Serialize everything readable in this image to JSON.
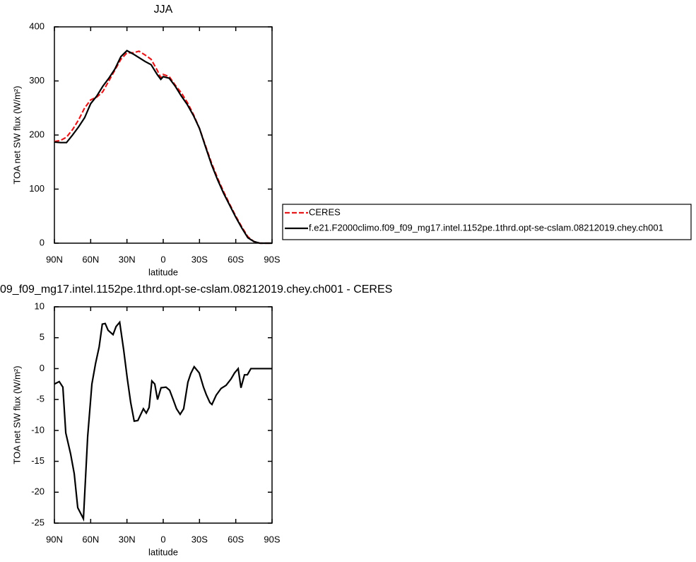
{
  "chart_data": [
    {
      "type": "line",
      "title": "JJA",
      "xlabel": "latitude",
      "ylabel": "TOA net SW flux (W/m²)",
      "x": [
        90,
        85,
        80,
        75,
        70,
        65,
        60,
        55,
        50,
        45,
        40,
        35,
        30,
        25,
        20,
        15,
        10,
        5,
        2,
        0,
        -5,
        -10,
        -15,
        -20,
        -25,
        -30,
        -35,
        -40,
        -45,
        -50,
        -55,
        -60,
        -65,
        -70,
        -75,
        -80,
        -85,
        -90
      ],
      "series": [
        {
          "name": "CERES",
          "color": "#e41a1c",
          "dash": true,
          "values": [
            188,
            190,
            196,
            210,
            228,
            250,
            265,
            270,
            280,
            300,
            320,
            340,
            352,
            352,
            355,
            348,
            340,
            320,
            306,
            312,
            308,
            292,
            278,
            260,
            238,
            212,
            180,
            148,
            120,
            95,
            72,
            50,
            30,
            12,
            3,
            0,
            0,
            0
          ]
        },
        {
          "name": "f.e21.F2000climo.f09_f09_mg17.intel.1152pe.1thrd.opt-se-cslam.08212019.chey.ch001",
          "color": "#000000",
          "dash": false,
          "values": [
            187,
            186,
            186,
            200,
            215,
            232,
            258,
            272,
            290,
            305,
            322,
            345,
            356,
            350,
            343,
            336,
            330,
            312,
            303,
            308,
            305,
            290,
            272,
            256,
            236,
            212,
            178,
            145,
            117,
            92,
            70,
            48,
            28,
            10,
            3,
            0,
            0,
            0
          ]
        }
      ],
      "xlim": [
        90,
        -90
      ],
      "xticks": [
        {
          "value": 90,
          "label": "90N"
        },
        {
          "value": 60,
          "label": "60N"
        },
        {
          "value": 30,
          "label": "30N"
        },
        0,
        {
          "value": -30,
          "label": "30S"
        },
        {
          "value": -60,
          "label": "60S"
        },
        {
          "value": -90,
          "label": "90S"
        }
      ],
      "ylim": [
        0,
        400
      ],
      "yticks": [
        0,
        100,
        200,
        300,
        400
      ]
    },
    {
      "type": "line",
      "title": "09_f09_mg17.intel.1152pe.1thrd.opt-se-cslam.08212019.chey.ch001 - CERES",
      "xlabel": "latitude",
      "ylabel": "TOA net SW flux (W/m²)",
      "x": [
        90,
        86,
        83,
        80.6,
        76.6,
        73.6,
        70.7,
        66,
        62.5,
        59,
        56,
        53,
        50.4,
        48,
        45.6,
        41.5,
        39,
        36,
        32.7,
        29.8,
        26.9,
        24,
        21,
        16.4,
        14,
        11.7,
        9.4,
        7,
        4.7,
        1.8,
        -2.3,
        -5.3,
        -8.2,
        -11,
        -14,
        -16.9,
        -20.4,
        -22.8,
        -25.6,
        -29.8,
        -33.3,
        -35.6,
        -38.6,
        -40.3,
        -43.8,
        -47.9,
        -52,
        -56,
        -59,
        -62,
        -64.3,
        -67.2,
        -69.6,
        -72.5,
        -78.4,
        -90
      ],
      "series": [
        {
          "color": "#000000",
          "dash": false,
          "values": [
            -2.5,
            -2.1,
            -3,
            -10.4,
            -13.8,
            -17,
            -22.5,
            -24.3,
            -11,
            -2.5,
            0.8,
            3.5,
            7.2,
            7.3,
            6.2,
            5.5,
            6.8,
            7.5,
            3,
            -1.5,
            -5.5,
            -8.5,
            -8.4,
            -6.5,
            -7.2,
            -6.3,
            -2,
            -2.5,
            -5,
            -3.1,
            -3,
            -3.5,
            -5,
            -6.5,
            -7.4,
            -6.5,
            -2.2,
            -0.8,
            0.3,
            -0.7,
            -3,
            -4.2,
            -5.5,
            -5.8,
            -4.3,
            -3.2,
            -2.7,
            -1.7,
            -0.7,
            0,
            -3.1,
            -1,
            -1,
            0,
            0,
            0
          ]
        }
      ],
      "xlim": [
        90,
        -90
      ],
      "xticks": [
        {
          "value": 90,
          "label": "90N"
        },
        {
          "value": 60,
          "label": "60N"
        },
        {
          "value": 30,
          "label": "30N"
        },
        0,
        {
          "value": -30,
          "label": "30S"
        },
        {
          "value": -60,
          "label": "60S"
        },
        {
          "value": -90,
          "label": "90S"
        }
      ],
      "ylim": [
        -25,
        10
      ],
      "yticks": [
        -25,
        -20,
        -15,
        -10,
        -5,
        0,
        5,
        10
      ]
    }
  ]
}
